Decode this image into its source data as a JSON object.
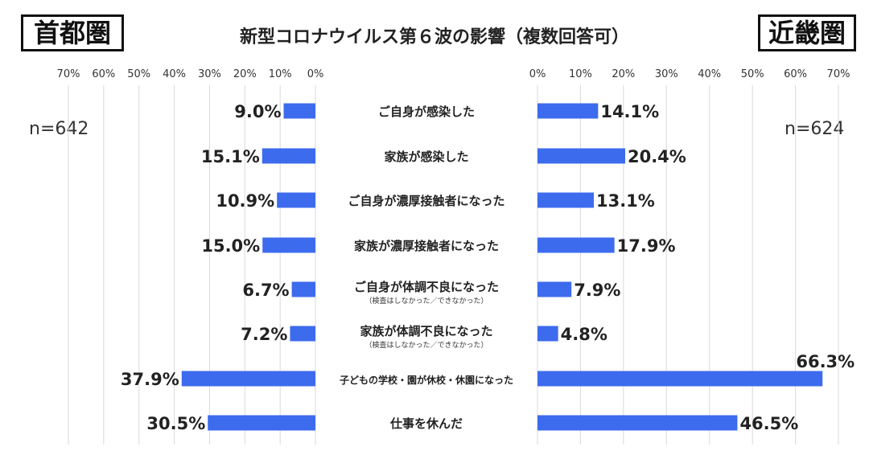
{
  "title": "新型コロナウイルス第６波の影響（複数回答可）",
  "regions": {
    "left": "首都圏",
    "right": "近畿圏"
  },
  "sample_sizes": {
    "left": "n=642",
    "right": "n=624"
  },
  "colors": {
    "bar": "#3D6BEE",
    "grid": "#d9d9d9"
  },
  "chart_data": [
    {
      "type": "bar",
      "panel": "left",
      "orientation": "horizontal",
      "direction": "reversed",
      "title": "首都圏",
      "n": "n=642",
      "xlim": [
        0,
        70
      ],
      "tick_labels": [
        "70%",
        "60%",
        "50%",
        "40%",
        "30%",
        "20%",
        "10%",
        "0%"
      ],
      "grid": true,
      "categories": [
        {
          "label": "ご自身が感染した",
          "note": ""
        },
        {
          "label": "家族が感染した",
          "note": ""
        },
        {
          "label": "ご自身が濃厚接触者になった",
          "note": ""
        },
        {
          "label": "家族が濃厚接触者になった",
          "note": ""
        },
        {
          "label": "ご自身が体調不良になった",
          "note": "（検査はしなかった／できなかった）"
        },
        {
          "label": "家族が体調不良になった",
          "note": "（検査はしなかった／できなかった）"
        },
        {
          "label": "子どもの学校・園が休校・休園になった",
          "note": ""
        },
        {
          "label": "仕事を休んだ",
          "note": ""
        }
      ],
      "values": [
        9.0,
        15.1,
        10.9,
        15.0,
        6.7,
        7.2,
        37.9,
        30.5
      ],
      "value_labels": [
        "9.0%",
        "15.1%",
        "10.9%",
        "15.0%",
        "6.7%",
        "7.2%",
        "37.9%",
        "30.5%"
      ]
    },
    {
      "type": "bar",
      "panel": "right",
      "orientation": "horizontal",
      "direction": "normal",
      "title": "近畿圏",
      "n": "n=624",
      "xlim": [
        0,
        70
      ],
      "tick_labels": [
        "0%",
        "10%",
        "20%",
        "30%",
        "40%",
        "50%",
        "60%",
        "70%"
      ],
      "grid": true,
      "categories": [
        {
          "label": "ご自身が感染した",
          "note": ""
        },
        {
          "label": "家族が感染した",
          "note": ""
        },
        {
          "label": "ご自身が濃厚接触者になった",
          "note": ""
        },
        {
          "label": "家族が濃厚接触者になった",
          "note": ""
        },
        {
          "label": "ご自身が体調不良になった",
          "note": "（検査はしなかった／できなかった）"
        },
        {
          "label": "家族が体調不良になった",
          "note": "（検査はしなかった／できなかった）"
        },
        {
          "label": "子どもの学校・園が休校・休園になった",
          "note": ""
        },
        {
          "label": "仕事を休んだ",
          "note": ""
        }
      ],
      "values": [
        14.1,
        20.4,
        13.1,
        17.9,
        7.9,
        4.8,
        66.3,
        46.5
      ],
      "value_labels": [
        "14.1%",
        "20.4%",
        "13.1%",
        "17.9%",
        "7.9%",
        "4.8%",
        "66.3%",
        "46.5%"
      ]
    }
  ]
}
